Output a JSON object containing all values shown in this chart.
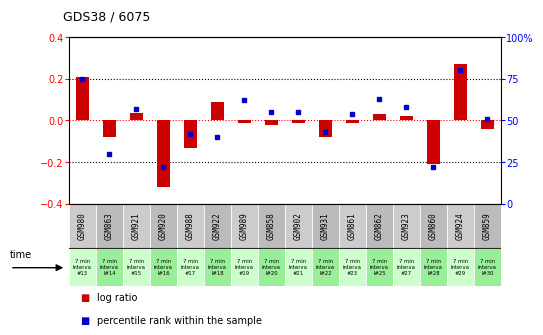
{
  "title": "GDS38 / 6075",
  "samples": [
    "GSM980",
    "GSM863",
    "GSM921",
    "GSM920",
    "GSM988",
    "GSM922",
    "GSM989",
    "GSM858",
    "GSM902",
    "GSM931",
    "GSM861",
    "GSM862",
    "GSM923",
    "GSM860",
    "GSM924",
    "GSM859"
  ],
  "time_labels": [
    "7 min\ninterva\n#13",
    "7 min\ninterva\nl#14",
    "7 min\ninterva\n#15",
    "7 min\ninterva\nl#16",
    "7 min\ninterva\n#17",
    "7 min\ninterva\nl#18",
    "7 min\ninterva\n#19",
    "7 min\ninterva\nl#20",
    "7 min\ninterva\n#21",
    "7 min\ninterva\nl#22",
    "7 min\ninterva\n#23",
    "7 min\ninterva\nl#25",
    "7 min\ninterva\n#27",
    "7 min\ninterva\nl#28",
    "7 min\ninterva\n#29",
    "7 min\ninterva\nl#30"
  ],
  "log_ratio": [
    0.21,
    -0.08,
    0.035,
    -0.32,
    -0.13,
    0.09,
    -0.01,
    -0.02,
    -0.01,
    -0.08,
    -0.01,
    0.03,
    0.02,
    -0.21,
    0.27,
    -0.04
  ],
  "percentile": [
    75,
    30,
    57,
    22,
    42,
    40,
    62,
    55,
    55,
    43,
    54,
    63,
    58,
    22,
    80,
    51
  ],
  "bar_color": "#cc0000",
  "dot_color": "#0000cc",
  "sample_bg_light": "#cccccc",
  "sample_bg_dark": "#bbbbbb",
  "time_bg_light": "#ccffcc",
  "time_bg_dark": "#99ee99",
  "ylim_left": [
    -0.4,
    0.4
  ],
  "ylim_right": [
    0,
    100
  ],
  "yticks_left": [
    -0.4,
    -0.2,
    0.0,
    0.2,
    0.4
  ],
  "yticks_right": [
    0,
    25,
    50,
    75,
    100
  ]
}
